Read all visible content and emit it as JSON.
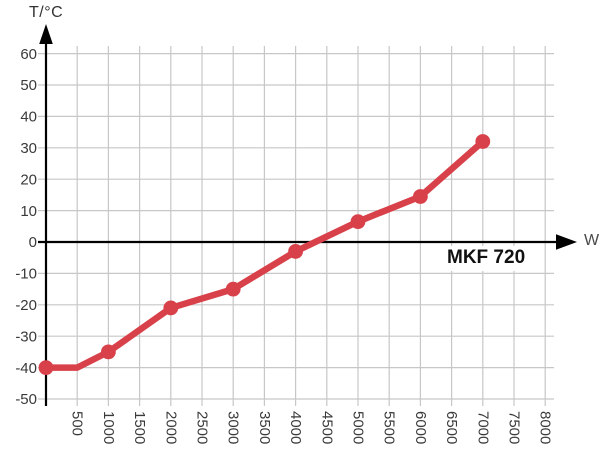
{
  "chart_data": {
    "type": "line",
    "title": "",
    "ylabel": "T/°C",
    "xlabel": "W",
    "model_label": "MKF 720",
    "xlim": [
      0,
      8000
    ],
    "ylim": [
      -50,
      60
    ],
    "x_ticks": [
      500,
      1000,
      1500,
      2000,
      2500,
      3000,
      3500,
      4000,
      4500,
      5000,
      5500,
      6000,
      6500,
      7000,
      7500,
      8000
    ],
    "y_ticks": [
      60,
      50,
      40,
      30,
      20,
      10,
      0,
      -10,
      -20,
      -30,
      -40,
      -50
    ],
    "grid": true,
    "legend": "none",
    "colors": {
      "series": "#d8414a",
      "grid": "#c7c7c7",
      "axis": "#000000",
      "tick_text": "#3a3a3a"
    },
    "series": [
      {
        "name": "MKF 720",
        "color": "#d8414a",
        "points": [
          {
            "x": 0,
            "y": -40,
            "marker": true
          },
          {
            "x": 500,
            "y": -40,
            "marker": false
          },
          {
            "x": 1000,
            "y": -35,
            "marker": true
          },
          {
            "x": 2000,
            "y": -21,
            "marker": true
          },
          {
            "x": 3000,
            "y": -15,
            "marker": true
          },
          {
            "x": 4000,
            "y": -3,
            "marker": true
          },
          {
            "x": 5000,
            "y": 6.5,
            "marker": true
          },
          {
            "x": 6000,
            "y": 14.5,
            "marker": true
          },
          {
            "x": 7000,
            "y": 32,
            "marker": true
          }
        ]
      }
    ]
  }
}
